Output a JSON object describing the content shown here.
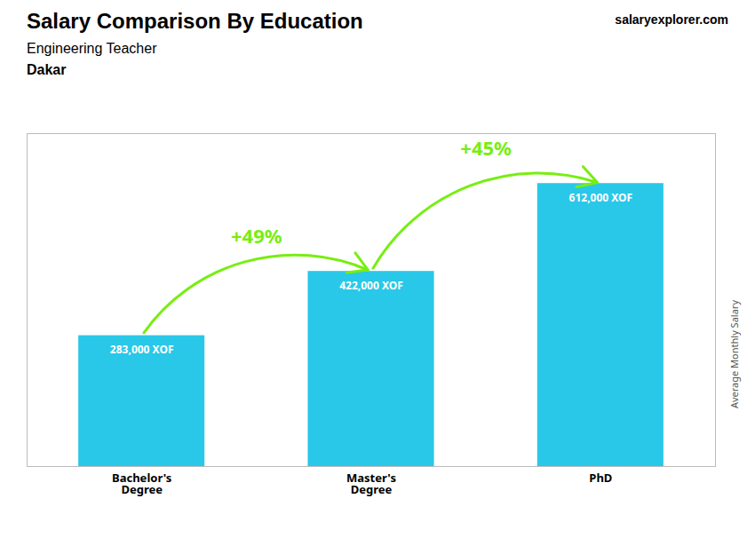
{
  "chart_data": {
    "type": "bar",
    "title": "Salary Comparison By Education",
    "subtitle": "Engineering Teacher",
    "ylabel": "Average Monthly Salary",
    "categories": [
      "Bachelor's\nDegree",
      "Master's\nDegree",
      "PhD"
    ],
    "values": [
      283000,
      422000,
      612000
    ],
    "value_labels": [
      "283,000 XOF",
      "422,000 XOF",
      "612,000 XOF"
    ],
    "data_labels": true,
    "color": "#29C8E8",
    "ylim": [
      0,
      720000
    ],
    "grid": false,
    "tick_labels": "x",
    "annotations": [
      {
        "text": "Dakar"
      },
      {
        "text": "salaryexplorer.com"
      },
      {
        "text": "+49%",
        "from": "Bachelor's\nDegree",
        "to": "Master's\nDegree",
        "color": "#77EE11"
      },
      {
        "text": "+45%",
        "from": "Master's\nDegree",
        "to": "PhD",
        "color": "#77EE11"
      }
    ]
  }
}
